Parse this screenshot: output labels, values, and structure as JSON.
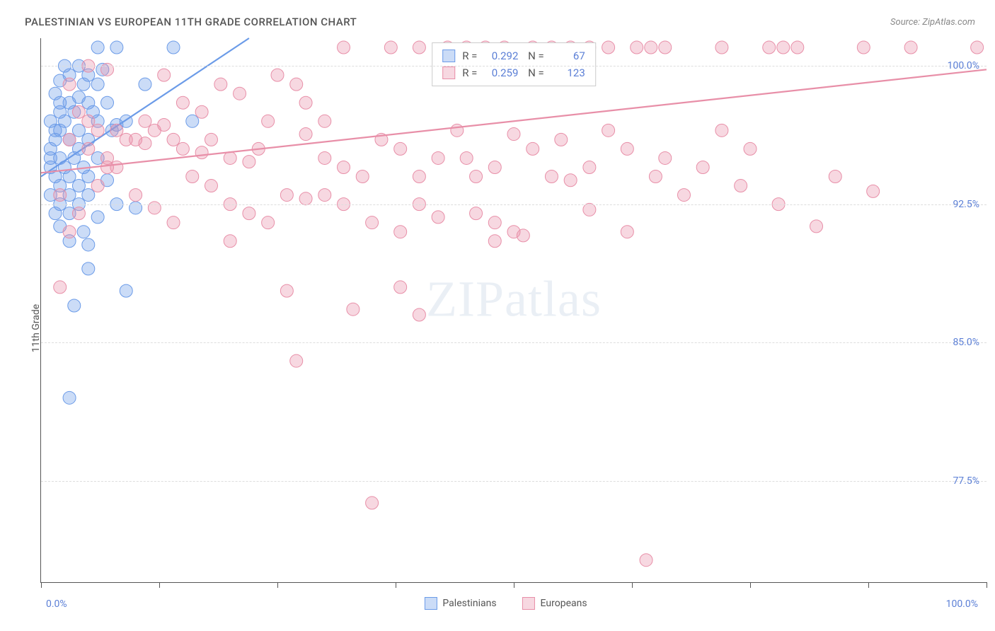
{
  "title": "PALESTINIAN VS EUROPEAN 11TH GRADE CORRELATION CHART",
  "source": "Source: ZipAtlas.com",
  "y_axis_label": "11th Grade",
  "watermark": "ZIPatlas",
  "x_min_label": "0.0%",
  "x_max_label": "100.0%",
  "x_range": [
    0,
    100
  ],
  "y_range": [
    72,
    101.5
  ],
  "y_ticks": [
    {
      "v": 100.0,
      "label": "100.0%"
    },
    {
      "v": 92.5,
      "label": "92.5%"
    },
    {
      "v": 85.0,
      "label": "85.0%"
    },
    {
      "v": 77.5,
      "label": "77.5%"
    }
  ],
  "x_tick_positions": [
    0,
    12.5,
    25,
    37.5,
    50,
    62.5,
    75,
    87.5,
    100
  ],
  "grid_color": "#dddddd",
  "axis_color": "#555555",
  "label_color": "#5b7fd6",
  "text_color": "#555555",
  "background_color": "#ffffff",
  "marker_radius": 9,
  "marker_opacity": 0.35,
  "line_width": 2.2,
  "series": [
    {
      "name": "Palestinians",
      "color": "#6b9be8",
      "fill_color": "rgba(107,155,232,0.35)",
      "stroke_color": "#6b9be8",
      "R": "0.292",
      "N": "67",
      "trend": {
        "x1": 0,
        "y1": 94.0,
        "x2": 22,
        "y2": 101.5
      },
      "points": [
        [
          1,
          95
        ],
        [
          1.5,
          96.5
        ],
        [
          2,
          98
        ],
        [
          6,
          101
        ],
        [
          8,
          101
        ],
        [
          14,
          101
        ],
        [
          2.5,
          100
        ],
        [
          4,
          100
        ],
        [
          3,
          99.5
        ],
        [
          5,
          99.5
        ],
        [
          4.5,
          99
        ],
        [
          6,
          99
        ],
        [
          1.5,
          98.5
        ],
        [
          3,
          98
        ],
        [
          5,
          98
        ],
        [
          7,
          98
        ],
        [
          2,
          97.5
        ],
        [
          3.5,
          97.5
        ],
        [
          5.5,
          97.5
        ],
        [
          1,
          97
        ],
        [
          2.5,
          97
        ],
        [
          6,
          97
        ],
        [
          9,
          97
        ],
        [
          16,
          97
        ],
        [
          2,
          96.5
        ],
        [
          4,
          96.5
        ],
        [
          7.5,
          96.5
        ],
        [
          1.5,
          96
        ],
        [
          3,
          96
        ],
        [
          5,
          96
        ],
        [
          1,
          95.5
        ],
        [
          4,
          95.5
        ],
        [
          8,
          96.8
        ],
        [
          2,
          95
        ],
        [
          3.5,
          95
        ],
        [
          6,
          95
        ],
        [
          1,
          94.5
        ],
        [
          2.5,
          94.5
        ],
        [
          4.5,
          94.5
        ],
        [
          1.5,
          94
        ],
        [
          3,
          94
        ],
        [
          5,
          94
        ],
        [
          2,
          93.5
        ],
        [
          4,
          93.5
        ],
        [
          7,
          93.8
        ],
        [
          1,
          93
        ],
        [
          3,
          93
        ],
        [
          5,
          93
        ],
        [
          2,
          92.5
        ],
        [
          4,
          92.5
        ],
        [
          8,
          92.5
        ],
        [
          10,
          92.3
        ],
        [
          1.5,
          92
        ],
        [
          3,
          92
        ],
        [
          6,
          91.8
        ],
        [
          2,
          91.3
        ],
        [
          4.5,
          91
        ],
        [
          3,
          90.5
        ],
        [
          5,
          90.3
        ],
        [
          9,
          87.8
        ],
        [
          3.5,
          87
        ],
        [
          5,
          89
        ],
        [
          3,
          82
        ],
        [
          2,
          99.2
        ],
        [
          4,
          98.3
        ],
        [
          6.5,
          99.8
        ],
        [
          11,
          99
        ]
      ]
    },
    {
      "name": "Europeans",
      "color": "#e88fa8",
      "fill_color": "rgba(232,143,168,0.35)",
      "stroke_color": "#e88fa8",
      "R": "0.259",
      "N": "123",
      "trend": {
        "x1": 0,
        "y1": 94.2,
        "x2": 100,
        "y2": 99.8
      },
      "points": [
        [
          32,
          101
        ],
        [
          37,
          101
        ],
        [
          40,
          101
        ],
        [
          43,
          101
        ],
        [
          45,
          101
        ],
        [
          47,
          101
        ],
        [
          49,
          101
        ],
        [
          52,
          101
        ],
        [
          54,
          101
        ],
        [
          56,
          101
        ],
        [
          58,
          101
        ],
        [
          60,
          101
        ],
        [
          63,
          101
        ],
        [
          64.5,
          101
        ],
        [
          66,
          101
        ],
        [
          72,
          101
        ],
        [
          77,
          101
        ],
        [
          78.5,
          101
        ],
        [
          80,
          101
        ],
        [
          87,
          101
        ],
        [
          92,
          101
        ],
        [
          99,
          101
        ],
        [
          3,
          96
        ],
        [
          5,
          95.5
        ],
        [
          7,
          94.5
        ],
        [
          2,
          93
        ],
        [
          4,
          92
        ],
        [
          6,
          93.5
        ],
        [
          3,
          91
        ],
        [
          2,
          88
        ],
        [
          5,
          97
        ],
        [
          8,
          96.5
        ],
        [
          10,
          96
        ],
        [
          12,
          96.5
        ],
        [
          14,
          96
        ],
        [
          15,
          95.5
        ],
        [
          17,
          95.3
        ],
        [
          18,
          96
        ],
        [
          20,
          95
        ],
        [
          22,
          94.8
        ],
        [
          23,
          95.5
        ],
        [
          24,
          97
        ],
        [
          25,
          99.5
        ],
        [
          27,
          99
        ],
        [
          28,
          98
        ],
        [
          30,
          97
        ],
        [
          26,
          93
        ],
        [
          20,
          92.5
        ],
        [
          22,
          92
        ],
        [
          24,
          91.5
        ],
        [
          28,
          92.8
        ],
        [
          30,
          93
        ],
        [
          32,
          92.5
        ],
        [
          35,
          91.5
        ],
        [
          38,
          91
        ],
        [
          40,
          92.5
        ],
        [
          42,
          91.8
        ],
        [
          30,
          95
        ],
        [
          32,
          94.5
        ],
        [
          34,
          94
        ],
        [
          36,
          96
        ],
        [
          38,
          95.5
        ],
        [
          40,
          94
        ],
        [
          42,
          95
        ],
        [
          44,
          96.5
        ],
        [
          46,
          94
        ],
        [
          48,
          94.5
        ],
        [
          50,
          91
        ],
        [
          52,
          95.5
        ],
        [
          54,
          94
        ],
        [
          56,
          93.8
        ],
        [
          48,
          91.5
        ],
        [
          58,
          94.5
        ],
        [
          62,
          95.5
        ],
        [
          65,
          94
        ],
        [
          68,
          93
        ],
        [
          72,
          96.5
        ],
        [
          75,
          95.5
        ],
        [
          78,
          92.5
        ],
        [
          82,
          91.3
        ],
        [
          88,
          93.2
        ],
        [
          48,
          90.5
        ],
        [
          51,
          90.8
        ],
        [
          55,
          96
        ],
        [
          60,
          96.5
        ],
        [
          26,
          87.8
        ],
        [
          33,
          86.8
        ],
        [
          27,
          84
        ],
        [
          38,
          88
        ],
        [
          40,
          86.5
        ],
        [
          35,
          76.3
        ],
        [
          64,
          73.2
        ],
        [
          13,
          99.5
        ],
        [
          15,
          98
        ],
        [
          17,
          97.5
        ],
        [
          19,
          99
        ],
        [
          21,
          98.5
        ],
        [
          11,
          97
        ],
        [
          9,
          96
        ],
        [
          7,
          95
        ],
        [
          16,
          94
        ],
        [
          18,
          93.5
        ],
        [
          20,
          90.5
        ],
        [
          14,
          91.5
        ],
        [
          12,
          92.3
        ],
        [
          10,
          93
        ],
        [
          8,
          94.5
        ],
        [
          6,
          96.5
        ],
        [
          4,
          97.5
        ],
        [
          3,
          99
        ],
        [
          5,
          100
        ],
        [
          7,
          99.8
        ],
        [
          45,
          95
        ],
        [
          50,
          96.3
        ],
        [
          58,
          92.2
        ],
        [
          46,
          92
        ],
        [
          62,
          91
        ],
        [
          66,
          95
        ],
        [
          70,
          94.5
        ],
        [
          74,
          93.5
        ],
        [
          84,
          94
        ],
        [
          13,
          96.8
        ],
        [
          11,
          95.8
        ],
        [
          28,
          96.3
        ]
      ]
    }
  ],
  "bottom_legend": [
    {
      "label": "Palestinians",
      "series_idx": 0
    },
    {
      "label": "Europeans",
      "series_idx": 1
    }
  ]
}
